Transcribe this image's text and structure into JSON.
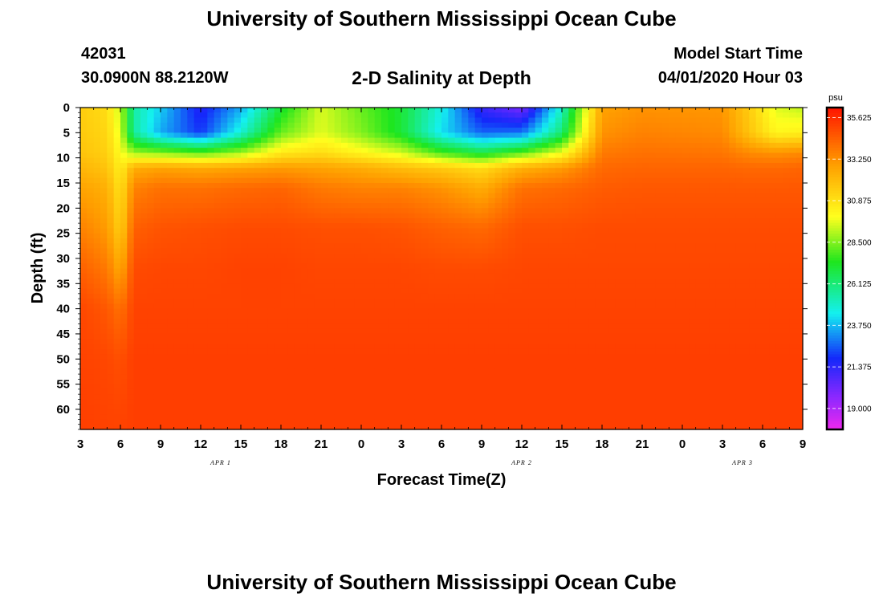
{
  "header": {
    "title": "University of Southern Mississippi Ocean Cube",
    "station_id": "42031",
    "location": "30.0900N 88.2120W",
    "plot_title": "2-D Salinity at Depth",
    "model_start_label": "Model Start Time",
    "model_start_value": "04/01/2020 Hour 03"
  },
  "footer": {
    "title": "University of Southern Mississippi Ocean Cube"
  },
  "chart_data": {
    "type": "heatmap",
    "title": "2-D Salinity at Depth",
    "xlabel": "Forecast Time(Z)",
    "ylabel": "Depth (ft)",
    "xlim": [
      0,
      54
    ],
    "ylim": [
      0,
      64
    ],
    "x_ticks": [
      {
        "hour": 0,
        "label": "3"
      },
      {
        "hour": 3,
        "label": "6"
      },
      {
        "hour": 6,
        "label": "9"
      },
      {
        "hour": 9,
        "label": "12"
      },
      {
        "hour": 12,
        "label": "15"
      },
      {
        "hour": 15,
        "label": "18"
      },
      {
        "hour": 18,
        "label": "21"
      },
      {
        "hour": 21,
        "label": "0"
      },
      {
        "hour": 24,
        "label": "3"
      },
      {
        "hour": 27,
        "label": "6"
      },
      {
        "hour": 30,
        "label": "9"
      },
      {
        "hour": 33,
        "label": "12"
      },
      {
        "hour": 36,
        "label": "15"
      },
      {
        "hour": 39,
        "label": "18"
      },
      {
        "hour": 42,
        "label": "21"
      },
      {
        "hour": 45,
        "label": "0"
      },
      {
        "hour": 48,
        "label": "3"
      },
      {
        "hour": 51,
        "label": "6"
      },
      {
        "hour": 54,
        "label": "9"
      }
    ],
    "date_labels": [
      {
        "hour": 10.5,
        "label": "APR 1"
      },
      {
        "hour": 33,
        "label": "APR 2"
      },
      {
        "hour": 49.5,
        "label": "APR 3"
      }
    ],
    "y_ticks": [
      0,
      5,
      10,
      15,
      20,
      25,
      30,
      35,
      40,
      45,
      50,
      55,
      60
    ],
    "colorbar": {
      "unit": "psu",
      "min": 17.8,
      "max": 36.2,
      "labels": [
        "35.625",
        "33.250",
        "30.875",
        "28.500",
        "26.125",
        "23.750",
        "21.375",
        "19.000"
      ]
    },
    "field": {
      "depth_ft": [
        0,
        5,
        9,
        12,
        16,
        24,
        32,
        40,
        50,
        64
      ],
      "rows": [
        {
          "hour": 0,
          "salinity": [
            31.5,
            31.6,
            31.8,
            32.2,
            32.8,
            33.6,
            34.4,
            35.0,
            35.1,
            35.2
          ]
        },
        {
          "hour": 2,
          "salinity": [
            31.0,
            31.2,
            31.4,
            31.8,
            32.4,
            33.0,
            33.8,
            34.6,
            35.0,
            35.1
          ]
        },
        {
          "hour": 3,
          "salinity": [
            29.2,
            29.5,
            30.0,
            30.4,
            30.8,
            31.4,
            32.6,
            34.0,
            34.8,
            35.1
          ]
        },
        {
          "hour": 4,
          "salinity": [
            25.5,
            25.6,
            28.8,
            32.5,
            33.6,
            34.4,
            34.9,
            35.1,
            35.2,
            35.2
          ]
        },
        {
          "hour": 6,
          "salinity": [
            24.0,
            23.5,
            28.5,
            32.8,
            34.0,
            34.7,
            35.0,
            35.1,
            35.2,
            35.2
          ]
        },
        {
          "hour": 9,
          "salinity": [
            21.5,
            22.0,
            28.0,
            32.6,
            34.0,
            34.8,
            35.0,
            35.1,
            35.2,
            35.2
          ]
        },
        {
          "hour": 12,
          "salinity": [
            23.5,
            24.8,
            28.8,
            32.8,
            34.2,
            34.9,
            35.1,
            35.1,
            35.2,
            35.2
          ]
        },
        {
          "hour": 15,
          "salinity": [
            27.0,
            28.2,
            30.6,
            33.0,
            34.3,
            34.9,
            35.1,
            35.1,
            35.2,
            35.2
          ]
        },
        {
          "hour": 18,
          "salinity": [
            29.5,
            29.6,
            31.0,
            32.8,
            33.8,
            34.8,
            35.0,
            35.1,
            35.2,
            35.2
          ]
        },
        {
          "hour": 21,
          "salinity": [
            28.2,
            28.5,
            30.2,
            32.5,
            33.6,
            34.8,
            35.0,
            35.1,
            35.2,
            35.2
          ]
        },
        {
          "hour": 24,
          "salinity": [
            27.0,
            27.0,
            29.4,
            32.0,
            33.6,
            34.7,
            35.0,
            35.1,
            35.2,
            35.2
          ]
        },
        {
          "hour": 27,
          "salinity": [
            24.6,
            24.2,
            27.8,
            31.6,
            33.2,
            34.4,
            34.9,
            35.1,
            35.2,
            35.2
          ]
        },
        {
          "hour": 30,
          "salinity": [
            21.2,
            22.6,
            26.8,
            31.0,
            32.5,
            34.2,
            34.9,
            35.1,
            35.2,
            35.2
          ]
        },
        {
          "hour": 33,
          "salinity": [
            20.0,
            22.8,
            28.0,
            32.4,
            34.0,
            34.8,
            35.0,
            35.1,
            35.2,
            35.2
          ]
        },
        {
          "hour": 36,
          "salinity": [
            25.0,
            26.2,
            29.8,
            33.0,
            34.2,
            34.8,
            35.0,
            35.1,
            35.2,
            35.2
          ]
        },
        {
          "hour": 39,
          "salinity": [
            32.8,
            33.2,
            33.8,
            34.2,
            34.5,
            34.9,
            35.0,
            35.1,
            35.2,
            35.2
          ]
        },
        {
          "hour": 42,
          "salinity": [
            33.2,
            33.6,
            34.0,
            34.3,
            34.6,
            34.9,
            35.0,
            35.1,
            35.2,
            35.2
          ]
        },
        {
          "hour": 48,
          "salinity": [
            33.1,
            33.4,
            33.9,
            34.3,
            34.6,
            34.9,
            35.0,
            35.1,
            35.2,
            35.2
          ]
        },
        {
          "hour": 50,
          "salinity": [
            31.5,
            31.8,
            33.4,
            34.2,
            34.6,
            34.9,
            35.0,
            35.1,
            35.2,
            35.2
          ]
        },
        {
          "hour": 52,
          "salinity": [
            29.6,
            30.2,
            33.2,
            34.2,
            34.6,
            34.9,
            35.0,
            35.1,
            35.2,
            35.2
          ]
        },
        {
          "hour": 54,
          "salinity": [
            29.2,
            30.4,
            33.4,
            34.3,
            34.6,
            34.9,
            35.0,
            35.1,
            35.2,
            35.2
          ]
        }
      ]
    }
  }
}
